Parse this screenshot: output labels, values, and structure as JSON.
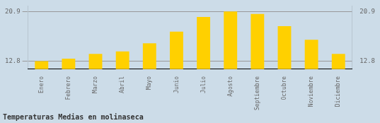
{
  "chart_data": {
    "type": "bar",
    "title": "Temperaturas Medias en molinaseca",
    "categories": [
      "Enero",
      "Febrero",
      "Marzo",
      "Abril",
      "Mayo",
      "Junio",
      "Julio",
      "Agosto",
      "Septiembre",
      "Octubre",
      "Noviembre",
      "Diciembre"
    ],
    "values": [
      12.8,
      13.2,
      14.0,
      14.4,
      15.7,
      17.6,
      20.0,
      20.9,
      20.5,
      18.5,
      16.3,
      14.0
    ],
    "color": "#FFD000",
    "ylim": [
      11.5,
      21.8
    ],
    "yticks": [
      12.8,
      20.9
    ],
    "y2lim": [
      11.5,
      21.8
    ],
    "y2ticks": [
      12.8,
      20.9
    ],
    "grid": true,
    "data_labels": true
  }
}
